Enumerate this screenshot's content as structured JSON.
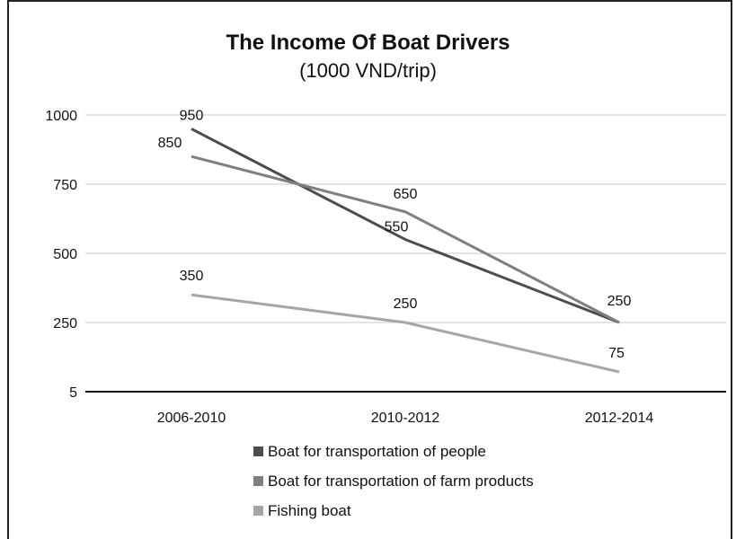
{
  "chart_data": {
    "type": "line",
    "title": "The Income Of Boat Drivers",
    "subtitle": "(1000 VND/trip)",
    "categories": [
      "2006-2010",
      "2010-2012",
      "2012-2014"
    ],
    "y_axis": {
      "ticks": [
        5,
        250,
        500,
        750,
        1000
      ],
      "range": [
        5,
        1000
      ]
    },
    "grid": true,
    "legend_position": "bottom",
    "series": [
      {
        "name": "Boat for transportation of people",
        "values": [
          950,
          550,
          250
        ],
        "labels": [
          "950",
          "550",
          ""
        ],
        "color": "#4d4d4d"
      },
      {
        "name": "Boat for transportation of farm products",
        "values": [
          850,
          650,
          250
        ],
        "labels": [
          "850",
          "650",
          "250"
        ],
        "color": "#7f7f7f"
      },
      {
        "name": "Fishing boat",
        "values": [
          350,
          250,
          75
        ],
        "labels": [
          "350",
          "250",
          "75"
        ],
        "color": "#a6a6a6"
      }
    ]
  }
}
